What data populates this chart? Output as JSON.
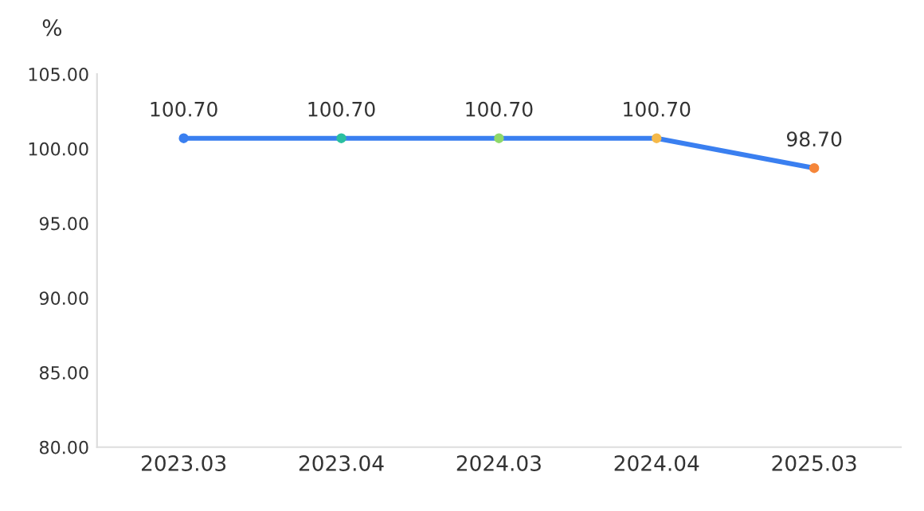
{
  "chart_data": {
    "type": "line",
    "ylabel": "%",
    "categories": [
      "2023.03",
      "2023.04",
      "2024.03",
      "2024.04",
      "2025.03"
    ],
    "series": [
      {
        "color": "#3a7ff0",
        "colors": [
          "#3a7ff0",
          "#2bbfa0",
          "#8fd86a",
          "#f5b94a",
          "#f5863a"
        ],
        "values": [
          100.7,
          100.7,
          100.7,
          100.7,
          98.7
        ],
        "value_labels": [
          "100.70",
          "100.70",
          "100.70",
          "100.70",
          "98.70"
        ]
      }
    ],
    "ylim": [
      80,
      105
    ],
    "yticks": [
      {
        "value": 80,
        "label": "80.00"
      },
      {
        "value": 85,
        "label": "85.00"
      },
      {
        "value": 90,
        "label": "90.00"
      },
      {
        "value": 95,
        "label": "95.00"
      },
      {
        "value": 100,
        "label": "100.00"
      },
      {
        "value": 105,
        "label": "105.00"
      }
    ],
    "marker": "circle",
    "grid": false,
    "legend": false
  }
}
